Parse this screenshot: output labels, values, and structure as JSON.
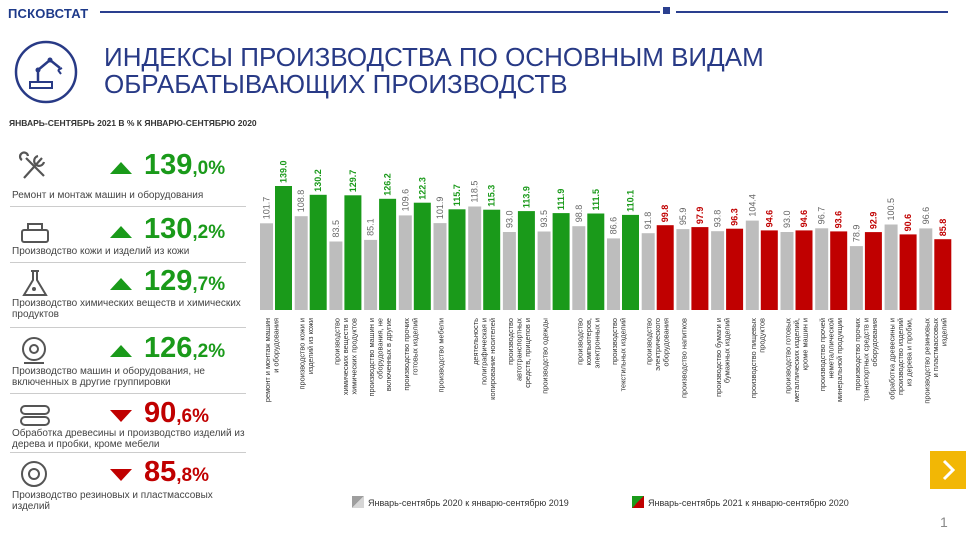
{
  "brand": "ПСКОВСТАТ",
  "title": "ИНДЕКСЫ ПРОИЗВОДСТВА ПО ОСНОВНЫМ ВИДАМ ОБРАБАТЫВАЮЩИХ ПРОИЗВОДСТВ",
  "subtitle": "ЯНВАРЬ-СЕНТЯБРЬ 2021 В % К ЯНВАРЮ-СЕНТЯБРЮ 2020",
  "page_number": "1",
  "indicators": [
    {
      "value_int": "139",
      "value_dec": ",0%",
      "trend": "up",
      "icon": "tools-icon",
      "label": "Ремонт и монтаж машин и оборудования"
    },
    {
      "value_int": "130",
      "value_dec": ",2%",
      "trend": "up",
      "icon": "leather-goods-icon",
      "label": "Производство кожи и изделий из кожи"
    },
    {
      "value_int": "129",
      "value_dec": ",7%",
      "trend": "up",
      "icon": "chemical-flask-icon",
      "label": "Производство химических веществ и химических продуктов"
    },
    {
      "value_int": "126",
      "value_dec": ",2%",
      "trend": "up",
      "icon": "machinery-icon",
      "label": "Производство машин и оборудования, не включенных в другие группировки"
    },
    {
      "value_int": "90",
      "value_dec": ",6%",
      "trend": "down",
      "icon": "wood-logs-icon",
      "label": "Обработка древесины и производство изделий из дерева и пробки, кроме мебели"
    },
    {
      "value_int": "85",
      "value_dec": ",8%",
      "trend": "down",
      "icon": "tire-icon",
      "label": "Производство резиновых и пластмассовых изделий"
    }
  ],
  "colors": {
    "up": "#1a9a1a",
    "down": "#c00000",
    "prev": "#bdbdbd",
    "title": "#283a86",
    "accent": "#f2b705"
  },
  "chart_data": {
    "type": "bar",
    "categories": [
      "ремонт и монтаж машин и оборудования",
      "производство кожи и изделий из кожи",
      "производство химических веществ и химических продуктов",
      "производство машин и оборудования, не включенных в другие группировки",
      "производство прочих готовых изделий",
      "производство мебели",
      "деятельность полиграфическая и копирование носителей информации",
      "производство автотранспортных средств, прицепов и полуприцепов",
      "производство одежды",
      "производство компьютеров, электронных и оптических изделий",
      "производство текстильных изделий",
      "производство электрического оборудования",
      "производство напитков",
      "производство бумаги и бумажных изделий",
      "производство пищевых продуктов",
      "производство готовых металлических изделий, кроме машин и оборудования",
      "производство прочей неметаллической минеральной продукции",
      "производство прочих транспортных средств и оборудования",
      "обработка древесины и производство изделий из дерева и пробки, кроме мебели",
      "производство резиновых и пластмассовых изделий"
    ],
    "series": [
      {
        "name": "Январь-сентябрь 2020 к январю-сентябрю 2019",
        "values": [
          101.7,
          108.8,
          83.5,
          85.1,
          109.6,
          101.9,
          118.5,
          93.0,
          93.5,
          98.8,
          86.6,
          91.8,
          95.9,
          93.8,
          104.4,
          93.0,
          96.7,
          78.9,
          100.5,
          96.6
        ]
      },
      {
        "name": "Январь-сентябрь 2021 к январю-сентябрю 2020",
        "values": [
          139.0,
          130.2,
          129.7,
          126.2,
          122.3,
          115.7,
          115.3,
          113.9,
          111.9,
          111.5,
          110.1,
          99.8,
          97.9,
          96.3,
          94.6,
          94.6,
          93.6,
          92.9,
          90.6,
          85.8
        ]
      }
    ],
    "legend_position": "bottom"
  }
}
